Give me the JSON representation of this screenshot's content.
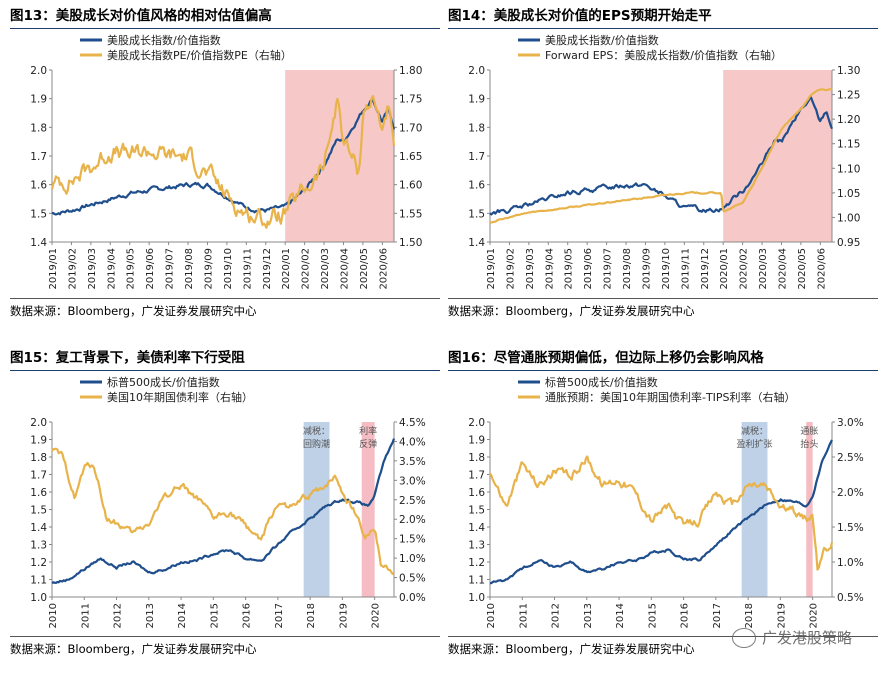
{
  "colors": {
    "blue": "#1f4e8c",
    "gold": "#e8b34a",
    "pink": "#f5c2c2",
    "lightblue": "#b8cce4",
    "lightpink": "#f4b6bc"
  },
  "source_label": "数据来源：",
  "source_text": "Bloomberg，广发证券发展研究中心",
  "watermark": "广发港股策略",
  "chart_data": [
    {
      "id": "fig13",
      "type": "line",
      "title": "图13：美股成长对价值风格的相对估值偏高",
      "legend": [
        "美股成长指数/价值指数",
        "美股成长指数PE/价值指数PE（右轴）"
      ],
      "ylim": [
        1.4,
        2.0
      ],
      "yticks": [
        "1.4",
        "1.5",
        "1.6",
        "1.7",
        "1.8",
        "1.9",
        "2.0"
      ],
      "y2lim": [
        1.5,
        1.8
      ],
      "y2ticks": [
        "1.50",
        "1.55",
        "1.60",
        "1.65",
        "1.70",
        "1.75",
        "1.80"
      ],
      "xticks": [
        "2019/01",
        "2019/02",
        "2019/03",
        "2019/04",
        "2019/05",
        "2019/06",
        "2019/07",
        "2019/08",
        "2019/09",
        "2019/10",
        "2019/11",
        "2019/12",
        "2020/01",
        "2020/02",
        "2020/03",
        "2020/04",
        "2020/05",
        "2020/06"
      ],
      "xmin": 0,
      "xmax": 17.6,
      "shade": [
        {
          "from": 12.0,
          "to": 17.6,
          "color": "pink"
        }
      ],
      "series": [
        {
          "name": "美股成长指数/价值指数",
          "axis": "left",
          "color": "blue",
          "x": [
            0,
            1,
            2,
            3,
            4,
            5,
            6,
            7,
            8,
            9,
            10,
            11,
            12,
            13,
            14,
            14.7,
            15,
            16,
            16.5,
            17,
            17.3,
            17.6
          ],
          "y": [
            1.5,
            1.51,
            1.53,
            1.55,
            1.57,
            1.58,
            1.59,
            1.6,
            1.6,
            1.56,
            1.52,
            1.51,
            1.52,
            1.58,
            1.67,
            1.76,
            1.75,
            1.86,
            1.9,
            1.82,
            1.86,
            1.8
          ],
          "noise": 0.006
        },
        {
          "name": "美股成长指数PE/价值指数PE（右轴）",
          "axis": "right",
          "color": "gold",
          "x": [
            0,
            1,
            2,
            3,
            4,
            5,
            6,
            7,
            8,
            9,
            10,
            11,
            12,
            13,
            14,
            14.7,
            15,
            15.8,
            16,
            16.5,
            17,
            17.3,
            17.6
          ],
          "y": [
            1.6,
            1.61,
            1.63,
            1.66,
            1.65,
            1.66,
            1.65,
            1.65,
            1.62,
            1.58,
            1.55,
            1.54,
            1.55,
            1.59,
            1.63,
            1.75,
            1.68,
            1.62,
            1.73,
            1.75,
            1.7,
            1.74,
            1.65
          ],
          "noise": 0.012
        }
      ]
    },
    {
      "id": "fig14",
      "type": "line",
      "title": "图14：美股成长对价值的EPS预期开始走平",
      "legend": [
        "美股成长指数/价值指数",
        "Forward EPS：美股成长指数/价值指数（右轴）"
      ],
      "ylim": [
        1.4,
        2.0
      ],
      "yticks": [
        "1.4",
        "1.5",
        "1.6",
        "1.7",
        "1.8",
        "1.9",
        "2.0"
      ],
      "y2lim": [
        0.95,
        1.3
      ],
      "y2ticks": [
        "0.95",
        "1.00",
        "1.05",
        "1.10",
        "1.15",
        "1.20",
        "1.25",
        "1.30"
      ],
      "xticks": [
        "2019/01",
        "2019/02",
        "2019/03",
        "2019/04",
        "2019/05",
        "2019/06",
        "2019/07",
        "2019/08",
        "2019/09",
        "2019/10",
        "2019/11",
        "2019/12",
        "2020/01",
        "2020/02",
        "2020/03",
        "2020/04",
        "2020/05",
        "2020/06"
      ],
      "xmin": 0,
      "xmax": 17.6,
      "shade": [
        {
          "from": 12.0,
          "to": 17.6,
          "color": "pink"
        }
      ],
      "series": [
        {
          "name": "美股成长指数/价值指数",
          "axis": "left",
          "color": "blue",
          "x": [
            0,
            1,
            2,
            3,
            4,
            5,
            6,
            7,
            8,
            9,
            10,
            11,
            12,
            13,
            14,
            14.7,
            15,
            16,
            16.5,
            17,
            17.3,
            17.6
          ],
          "y": [
            1.5,
            1.51,
            1.53,
            1.55,
            1.57,
            1.58,
            1.59,
            1.6,
            1.6,
            1.56,
            1.52,
            1.51,
            1.52,
            1.58,
            1.67,
            1.76,
            1.75,
            1.86,
            1.9,
            1.82,
            1.86,
            1.8
          ],
          "noise": 0.006
        },
        {
          "name": "Forward EPS：美股成长指数/价值指数（右轴）",
          "axis": "right",
          "color": "gold",
          "x": [
            0,
            2,
            4,
            6,
            8,
            10,
            11.9,
            12.0,
            13,
            14,
            15,
            16,
            16.5,
            17,
            17.6
          ],
          "y": [
            0.99,
            1.01,
            1.02,
            1.03,
            1.04,
            1.05,
            1.05,
            1.01,
            1.03,
            1.1,
            1.18,
            1.22,
            1.25,
            1.26,
            1.26
          ],
          "noise": 0.001
        }
      ]
    },
    {
      "id": "fig15",
      "type": "line",
      "title": "图15：复工背景下，美债利率下行受阻",
      "legend": [
        "标普500成长/价值指数",
        "美国10年期国债利率（右轴）"
      ],
      "ylim": [
        1.0,
        2.0
      ],
      "yticks": [
        "1.0",
        "1.1",
        "1.2",
        "1.3",
        "1.4",
        "1.5",
        "1.6",
        "1.7",
        "1.8",
        "1.9",
        "2.0"
      ],
      "y2lim": [
        0,
        4.5
      ],
      "y2ticks": [
        "0.0%",
        "0.5%",
        "1.0%",
        "1.5%",
        "2.0%",
        "2.5%",
        "3.0%",
        "3.5%",
        "4.0%",
        "4.5%"
      ],
      "xticks": [
        "2010",
        "2011",
        "2012",
        "2013",
        "2014",
        "2015",
        "2016",
        "2017",
        "2018",
        "2019",
        "2020"
      ],
      "xmin": 2010,
      "xmax": 2020.6,
      "shade": [
        {
          "from": 2017.8,
          "to": 2018.6,
          "color": "lightblue"
        },
        {
          "from": 2019.6,
          "to": 2020.0,
          "color": "lightpink"
        }
      ],
      "annotations": [
        {
          "x": 2018.2,
          "lines": [
            "减税：",
            "回购潮"
          ]
        },
        {
          "x": 2019.8,
          "lines": [
            "利率",
            "反弹"
          ]
        }
      ],
      "series": [
        {
          "name": "标普500成长/价值指数",
          "axis": "left",
          "color": "blue",
          "x": [
            2010,
            2010.5,
            2011,
            2011.5,
            2012,
            2012.5,
            2013,
            2013.5,
            2014,
            2014.5,
            2015,
            2015.5,
            2016,
            2016.5,
            2017,
            2017.5,
            2018,
            2018.5,
            2019,
            2019.5,
            2019.8,
            2020,
            2020.3,
            2020.6
          ],
          "y": [
            1.08,
            1.1,
            1.16,
            1.22,
            1.17,
            1.2,
            1.14,
            1.16,
            1.2,
            1.21,
            1.25,
            1.27,
            1.22,
            1.21,
            1.3,
            1.38,
            1.45,
            1.52,
            1.56,
            1.54,
            1.52,
            1.58,
            1.78,
            1.9
          ],
          "noise": 0.006
        },
        {
          "name": "美国10年期国债利率（右轴）",
          "axis": "right",
          "color": "gold",
          "x": [
            2010,
            2010.3,
            2010.7,
            2011,
            2011.3,
            2011.7,
            2012,
            2012.5,
            2013,
            2013.5,
            2014,
            2014.5,
            2015,
            2015.5,
            2016,
            2016.5,
            2017,
            2017.5,
            2018,
            2018.8,
            2019,
            2019.5,
            2019.7,
            2020,
            2020.2,
            2020.6
          ],
          "y": [
            3.8,
            3.6,
            2.6,
            3.3,
            3.4,
            2.0,
            1.9,
            1.6,
            1.9,
            2.6,
            2.9,
            2.5,
            2.0,
            2.2,
            1.8,
            1.5,
            2.4,
            2.3,
            2.6,
            3.1,
            2.7,
            2.0,
            1.6,
            1.8,
            0.8,
            0.7
          ],
          "noise": 0.07
        }
      ]
    },
    {
      "id": "fig16",
      "type": "line",
      "title": "图16：尽管通胀预期偏低，但边际上移仍会影响风格",
      "legend": [
        "标普500成长/价值指数",
        "通胀预期：美国10年期国债利率-TIPS利率（右轴）"
      ],
      "ylim": [
        1.0,
        2.0
      ],
      "yticks": [
        "1.0",
        "1.1",
        "1.2",
        "1.3",
        "1.4",
        "1.5",
        "1.6",
        "1.7",
        "1.8",
        "1.9",
        "2.0"
      ],
      "y2lim": [
        0.5,
        3.0
      ],
      "y2ticks": [
        "0.5%",
        "1.0%",
        "1.5%",
        "2.0%",
        "2.5%",
        "3.0%"
      ],
      "xticks": [
        "2010",
        "2011",
        "2012",
        "2013",
        "2014",
        "2015",
        "2016",
        "2017",
        "2018",
        "2019",
        "2020"
      ],
      "xmin": 2010,
      "xmax": 2020.6,
      "shade": [
        {
          "from": 2017.8,
          "to": 2018.6,
          "color": "lightblue"
        },
        {
          "from": 2019.8,
          "to": 2020.0,
          "color": "lightpink"
        }
      ],
      "annotations": [
        {
          "x": 2018.2,
          "lines": [
            "减税：",
            "盈利扩张"
          ]
        },
        {
          "x": 2019.9,
          "lines": [
            "通胀",
            "抬头"
          ]
        }
      ],
      "series": [
        {
          "name": "标普500成长/价值指数",
          "axis": "left",
          "color": "blue",
          "x": [
            2010,
            2010.5,
            2011,
            2011.5,
            2012,
            2012.5,
            2013,
            2013.5,
            2014,
            2014.5,
            2015,
            2015.5,
            2016,
            2016.5,
            2017,
            2017.5,
            2018,
            2018.5,
            2019,
            2019.5,
            2019.8,
            2020,
            2020.3,
            2020.6
          ],
          "y": [
            1.08,
            1.1,
            1.16,
            1.22,
            1.17,
            1.2,
            1.14,
            1.16,
            1.2,
            1.21,
            1.25,
            1.27,
            1.22,
            1.21,
            1.3,
            1.38,
            1.45,
            1.52,
            1.56,
            1.54,
            1.52,
            1.58,
            1.78,
            1.9
          ],
          "noise": 0.006
        },
        {
          "name": "通胀预期：美国10年期国债利率-TIPS利率（右轴）",
          "axis": "right",
          "color": "gold",
          "x": [
            2010,
            2010.5,
            2011,
            2011.5,
            2012,
            2012.5,
            2013,
            2013.5,
            2014,
            2014.5,
            2015,
            2015.5,
            2016,
            2016.5,
            2017,
            2017.5,
            2018,
            2018.5,
            2019,
            2019.5,
            2019.8,
            2020,
            2020.15,
            2020.3,
            2020.6
          ],
          "y": [
            2.3,
            1.8,
            2.4,
            2.1,
            2.3,
            2.2,
            2.5,
            2.1,
            2.2,
            2.0,
            1.6,
            1.8,
            1.5,
            1.6,
            2.0,
            1.8,
            2.1,
            2.1,
            1.8,
            1.7,
            1.6,
            1.7,
            0.9,
            1.1,
            1.3
          ],
          "noise": 0.05
        }
      ]
    }
  ]
}
